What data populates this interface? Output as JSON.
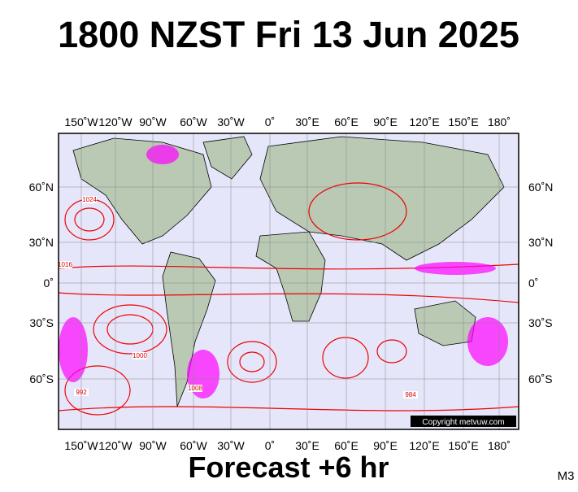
{
  "title": "1800 NZST Fri 13 Jun 2025",
  "map": {
    "lon_labels": [
      "150˚W",
      "120˚W",
      "90˚W",
      "60˚W",
      "30˚W",
      "0˚",
      "30˚E",
      "60˚E",
      "90˚E",
      "120˚E",
      "150˚E",
      "180˚"
    ],
    "lat_labels": [
      "60˚N",
      "30˚N",
      "0˚",
      "30˚S",
      "60˚S"
    ],
    "isobar_labels": [
      "1024",
      "1016",
      "1008",
      "1000",
      "992",
      "984"
    ],
    "copyright": "Copyright metvuw.com"
  },
  "forecast": "Forecast +6 hr",
  "model": "M3"
}
